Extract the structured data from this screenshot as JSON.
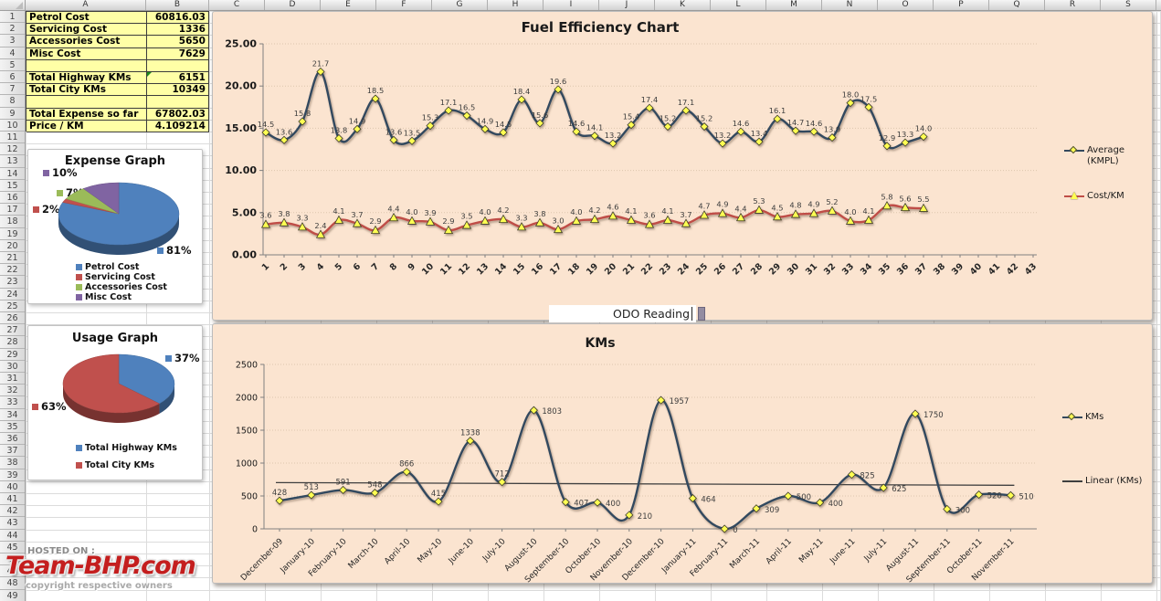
{
  "spreadsheet": {
    "columns": [
      "A",
      "B",
      "C",
      "D",
      "E",
      "F",
      "G",
      "H",
      "I",
      "J",
      "K",
      "L",
      "M",
      "N",
      "O",
      "P",
      "Q",
      "R",
      "S"
    ],
    "row_count": 50,
    "table": {
      "rows": [
        {
          "label": "Petrol Cost",
          "value": "60816.03"
        },
        {
          "label": "Servicing Cost",
          "value": "1336"
        },
        {
          "label": "Accessories Cost",
          "value": "5650"
        },
        {
          "label": "Misc Cost",
          "value": "7629"
        },
        {
          "label": "",
          "value": ""
        },
        {
          "label": "Total Highway KMs",
          "value": "6151"
        },
        {
          "label": "Total City KMs",
          "value": "10349"
        },
        {
          "label": "",
          "value": ""
        },
        {
          "label": "Total Expense so far",
          "value": "67802.03"
        },
        {
          "label": "Price / KM",
          "value": "4.109214"
        }
      ]
    }
  },
  "odo_textbox": {
    "text": "ODO Reading"
  },
  "watermark": {
    "line1": "HOSTED ON :",
    "logo": "Team-BHP.com",
    "line2": "copyright respective owners"
  },
  "colors": {
    "chart_background": "#fbe4d0",
    "cell_fill": "#ffffa6",
    "marker_fill": "#ffff52",
    "average_line": "#33485e",
    "cost_line": "#bf4e47",
    "trend_line": "#3f3f3f"
  },
  "chart_data": [
    {
      "type": "pie",
      "title": "Expense Graph",
      "legend": [
        "Petrol Cost",
        "Servicing Cost",
        "Accessories Cost",
        "Misc Cost"
      ],
      "values": [
        81,
        2,
        7,
        10
      ],
      "percent_labels": [
        "81%",
        "2%",
        "7%",
        "10%"
      ],
      "colors": [
        "#4f81bd",
        "#c0504d",
        "#9bbb59",
        "#8064a2"
      ],
      "legend_position": "bottom"
    },
    {
      "type": "pie",
      "title": "Usage Graph",
      "legend": [
        "Total Highway KMs",
        "Total City KMs"
      ],
      "values": [
        37,
        63
      ],
      "percent_labels": [
        "37%",
        "63%"
      ],
      "colors": [
        "#4f81bd",
        "#c0504d"
      ],
      "legend_position": "bottom"
    },
    {
      "type": "line",
      "title": "Fuel Efficiency Chart",
      "x_ticks": [
        1,
        2,
        3,
        4,
        5,
        6,
        7,
        8,
        9,
        10,
        11,
        12,
        13,
        14,
        15,
        16,
        17,
        18,
        19,
        20,
        21,
        22,
        23,
        24,
        25,
        26,
        27,
        28,
        29,
        30,
        31,
        32,
        33,
        34,
        35,
        36,
        37,
        38,
        39,
        40,
        41,
        42,
        43
      ],
      "ylim": [
        0,
        25
      ],
      "yticks": [
        "0.00",
        "5.00",
        "10.00",
        "15.00",
        "20.00",
        "25.00"
      ],
      "grid": true,
      "legend_position": "right",
      "series": [
        {
          "name": "Average (KMPL)",
          "marker": "diamond",
          "color": "#33485e",
          "values": [
            14.5,
            13.6,
            15.8,
            21.7,
            13.8,
            14.9,
            18.5,
            13.6,
            13.5,
            15.3,
            17.1,
            16.5,
            14.9,
            14.5,
            18.4,
            15.6,
            19.6,
            14.6,
            14.1,
            13.2,
            15.4,
            17.4,
            15.2,
            17.1,
            15.2,
            13.2,
            14.6,
            13.4,
            16.1,
            14.7,
            14.6,
            13.9,
            18.0,
            17.5,
            12.9,
            13.3,
            14.0
          ]
        },
        {
          "name": "Cost/KM",
          "marker": "triangle",
          "color": "#bf4e47",
          "values": [
            3.6,
            3.8,
            3.3,
            2.4,
            4.1,
            3.7,
            2.9,
            4.4,
            4.0,
            3.9,
            2.9,
            3.5,
            4.0,
            4.2,
            3.3,
            3.8,
            3.0,
            4.0,
            4.2,
            4.6,
            4.1,
            3.6,
            4.1,
            3.7,
            4.7,
            4.9,
            4.4,
            5.3,
            4.5,
            4.8,
            4.9,
            5.2,
            4.0,
            4.1,
            5.8,
            5.6,
            5.5
          ]
        }
      ]
    },
    {
      "type": "line",
      "title": "KMs",
      "categories": [
        "December-09",
        "January-10",
        "February-10",
        "March-10",
        "April-10",
        "May-10",
        "June-10",
        "July-10",
        "August-10",
        "September-10",
        "October-10",
        "November-10",
        "December-10",
        "January-11",
        "February-11",
        "March-11",
        "April-11",
        "May-11",
        "June-11",
        "July-11",
        "August-11",
        "September-11",
        "October-11",
        "November-11"
      ],
      "ylim": [
        0,
        2500
      ],
      "yticks": [
        "0",
        "500",
        "1000",
        "1500",
        "2000",
        "2500"
      ],
      "grid": true,
      "legend_position": "right",
      "series": [
        {
          "name": "KMs",
          "marker": "diamond",
          "color": "#33485e",
          "values": [
            428,
            513,
            591,
            548,
            866,
            415,
            1338,
            712,
            1803,
            407,
            400,
            210,
            1957,
            464,
            0,
            309,
            500,
            400,
            825,
            625,
            1750,
            300,
            520,
            510
          ]
        }
      ],
      "trend": {
        "name": "Linear (KMs)",
        "color": "#3f3f3f"
      }
    }
  ]
}
